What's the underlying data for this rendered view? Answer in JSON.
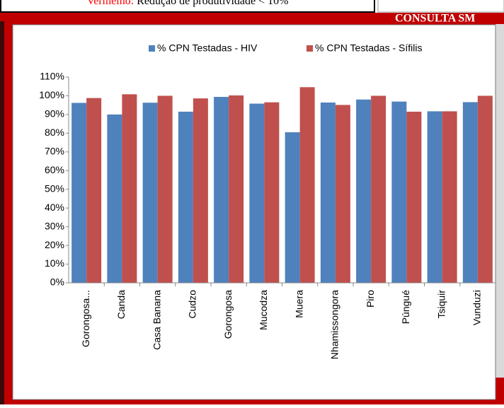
{
  "document": {
    "note_label": "Vermelho:",
    "note_text": "Redução de produtividade < 10%",
    "banner": "CONSULTA SM"
  },
  "chart_data": {
    "type": "bar",
    "categories": [
      "Gorongosa...",
      "Canda",
      "Casa Banana",
      "Cudzo",
      "Gorongosa",
      "Mucodza",
      "Muera",
      "Nhamissongora",
      "Piro",
      "Púngué",
      "Tsiquir",
      "Vunduzi"
    ],
    "series": [
      {
        "name": "% CPN Testadas - HIV",
        "color": "#4f81bd",
        "values": [
          96.2,
          90,
          96.3,
          91.5,
          99.4,
          95.8,
          80.5,
          96.4,
          98,
          96.9,
          91.7,
          96.6
        ]
      },
      {
        "name": "% CPN Testadas - Sífilis",
        "color": "#c0504d",
        "values": [
          98.8,
          100.8,
          100,
          98.6,
          100.2,
          96.5,
          104.6,
          95.1,
          100,
          91.5,
          91.7,
          100
        ]
      }
    ],
    "ylim": [
      0,
      110
    ],
    "yticks": [
      {
        "value": 0,
        "label": "0%"
      },
      {
        "value": 10,
        "label": "10%"
      },
      {
        "value": 20,
        "label": "20%"
      },
      {
        "value": 30,
        "label": "30%"
      },
      {
        "value": 40,
        "label": "40%"
      },
      {
        "value": 50,
        "label": "50%"
      },
      {
        "value": 60,
        "label": "60%"
      },
      {
        "value": 70,
        "label": "70%"
      },
      {
        "value": 80,
        "label": "80%"
      },
      {
        "value": 90,
        "label": "90%"
      },
      {
        "value": 100,
        "label": "100%"
      },
      {
        "value": 110,
        "label": "110%"
      }
    ],
    "legend": "top"
  }
}
